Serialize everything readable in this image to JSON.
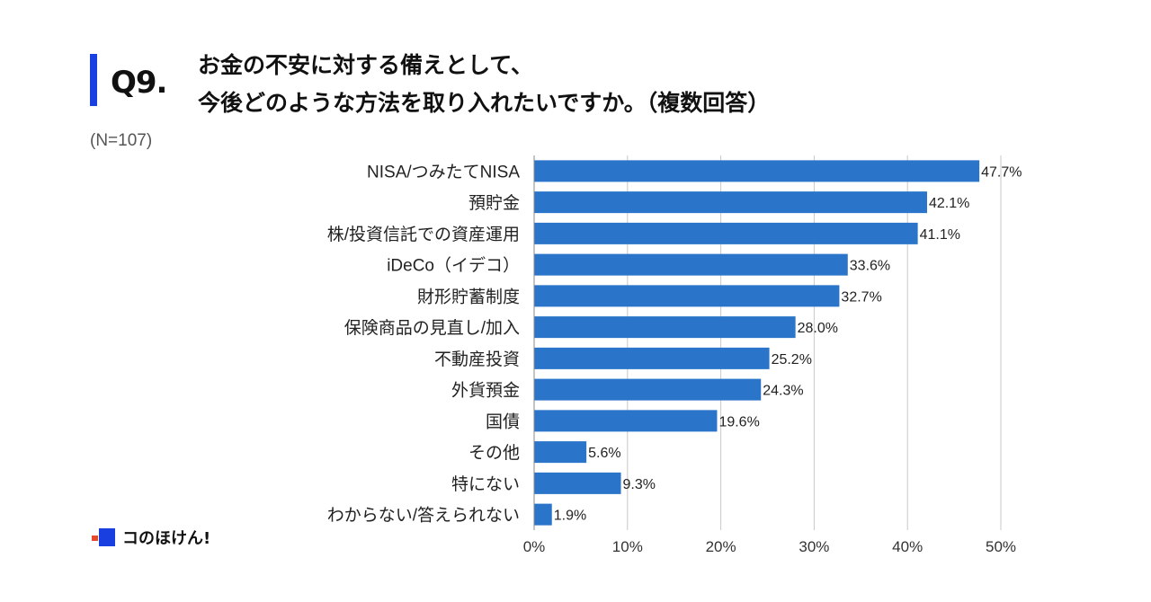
{
  "header": {
    "question_number": "Q9.",
    "title_line1": "お金の不安に対する備えとして、",
    "title_line2": "今後どのような方法を取り入れたいですか。（複数回答）",
    "sample_size": "(N=107)"
  },
  "logo": {
    "text": "コのほけん!"
  },
  "colors": {
    "bar": "#2a74c9",
    "accent": "#1a3fe0",
    "grid": "#c8c8c8"
  },
  "chart_data": {
    "type": "bar",
    "orientation": "horizontal",
    "categories": [
      "NISA/つみたてNISA",
      "預貯金",
      "株/投資信託での資産運用",
      "iDeCo（イデコ）",
      "財形貯蓄制度",
      "保険商品の見直し/加入",
      "不動産投資",
      "外貨預金",
      "国債",
      "その他",
      "特にない",
      "わからない/答えられない"
    ],
    "values": [
      47.7,
      42.1,
      41.1,
      33.6,
      32.7,
      28.0,
      25.2,
      24.3,
      19.6,
      5.6,
      9.3,
      1.9
    ],
    "value_labels": [
      "47.7%",
      "42.1%",
      "41.1%",
      "33.6%",
      "32.7%",
      "28.0%",
      "25.2%",
      "24.3%",
      "19.6%",
      "5.6%",
      "9.3%",
      "1.9%"
    ],
    "xlim": [
      0,
      50
    ],
    "xticks": [
      0,
      10,
      20,
      30,
      40,
      50
    ],
    "xtick_labels": [
      "0%",
      "10%",
      "20%",
      "30%",
      "40%",
      "50%"
    ],
    "grid": true
  }
}
